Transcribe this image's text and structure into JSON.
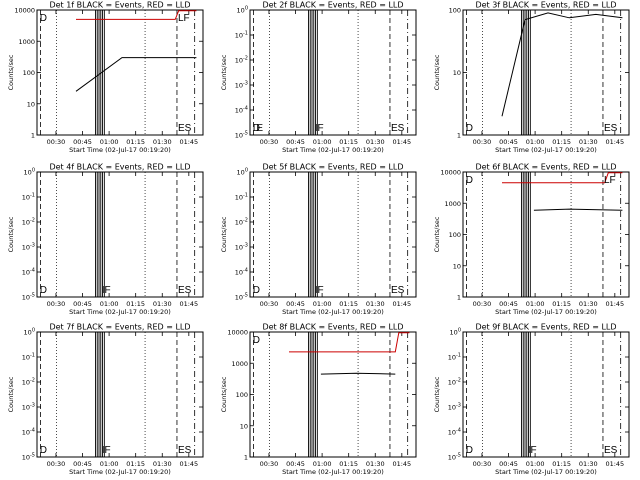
{
  "figure": {
    "xlabel": "Start Time (02-Jul-17 00:19:20)",
    "ylabel": "Counts/sec",
    "xlim": [
      "00:19:20",
      "01:53"
    ],
    "tick_sets": {
      "a": [
        "00:30",
        "00:45",
        "01:00",
        "01:15",
        "01:30",
        "01:45"
      ],
      "b": [
        "00:30",
        "00:45",
        "01:00",
        "01:15",
        "01:30",
        "01:45"
      ]
    },
    "ytick_sets": {
      "linear": [
        "1",
        "10",
        "100",
        "1000",
        "10000"
      ],
      "exp": [
        "10^0",
        "10^-1",
        "10^-2",
        "10^-3",
        "10^-4",
        "10^-5"
      ]
    },
    "colors": {
      "events": "#000000",
      "lld": "#cc0000",
      "axes": "#000000"
    }
  },
  "chart_data": [
    {
      "title": "Det 1f BLACK = Events, RED = LLD",
      "type": "line",
      "yscale": "log",
      "ylim": [
        1,
        10000
      ],
      "ytick_labels": [
        "1",
        "10",
        "100",
        "1000",
        "10000"
      ],
      "xtick_labels": [
        "00:30",
        "00:45",
        "01:00",
        "01:15",
        "01:30",
        "01:45"
      ],
      "series": [
        {
          "name": "Events",
          "color": "#000000",
          "x_min": [
            22,
            48,
            90
          ],
          "y": [
            25,
            300,
            300
          ]
        },
        {
          "name": "LLD",
          "color": "#cc0000",
          "x_min": [
            22,
            78,
            80,
            90
          ],
          "y": [
            5000,
            5000,
            9500,
            9500
          ]
        }
      ],
      "marks": [
        "D",
        "LF",
        "ES"
      ]
    },
    {
      "title": "Det 2f BLACK = Events, RED = LLD",
      "type": "line",
      "yscale": "log",
      "ylim": [
        1e-05,
        1
      ],
      "ytick_labels": [
        "10^0",
        "10^-1",
        "10^-2",
        "10^-3",
        "10^-4",
        "10^-5"
      ],
      "xtick_labels": [
        "00:30",
        "00:45",
        "01:00",
        "01:15",
        "01:30",
        "01:45"
      ],
      "series": [],
      "marks": [
        "D",
        "E",
        "IF",
        "ES"
      ]
    },
    {
      "title": "Det 3f BLACK = Events, RED = LLD",
      "type": "line",
      "yscale": "log",
      "ylim": [
        1,
        100
      ],
      "ytick_labels": [
        "1",
        "10",
        "100"
      ],
      "xtick_labels": [
        "00:30",
        "00:45",
        "01:00",
        "01:15",
        "01:30",
        "01:45"
      ],
      "series": [
        {
          "name": "Events",
          "color": "#000000",
          "x_min": [
            22,
            35,
            48,
            60,
            75,
            90
          ],
          "y": [
            2,
            70,
            90,
            75,
            85,
            75
          ]
        }
      ],
      "marks": [
        "D",
        "ES"
      ]
    },
    {
      "title": "Det 4f BLACK = Events, RED = LLD",
      "type": "line",
      "yscale": "log",
      "ylim": [
        1e-05,
        1
      ],
      "ytick_labels": [
        "10^0",
        "10^-1",
        "10^-2",
        "10^-3",
        "10^-4",
        "10^-5"
      ],
      "xtick_labels": [
        "00:30",
        "00:45",
        "01:00",
        "01:15",
        "01:30",
        "01:45"
      ],
      "series": [],
      "marks": [
        "D",
        "IF",
        "ES"
      ]
    },
    {
      "title": "Det 5f BLACK = Events, RED = LLD",
      "type": "line",
      "yscale": "log",
      "ylim": [
        1e-05,
        1
      ],
      "ytick_labels": [
        "10^0",
        "10^-1",
        "10^-2",
        "10^-3",
        "10^-4",
        "10^-5"
      ],
      "xtick_labels": [
        "00:30",
        "00:45",
        "01:00",
        "01:15",
        "01:30",
        "01:45"
      ],
      "series": [],
      "marks": [
        "D",
        "IF",
        "ES"
      ]
    },
    {
      "title": "Det 6f BLACK = Events, RED = LLD",
      "type": "line",
      "yscale": "log",
      "ylim": [
        1,
        10000
      ],
      "ytick_labels": [
        "1",
        "10",
        "100",
        "1000",
        "10000"
      ],
      "xtick_labels": [
        "00:30",
        "00:45",
        "01:00",
        "01:15",
        "01:30",
        "01:45"
      ],
      "series": [
        {
          "name": "Events",
          "color": "#000000",
          "x_min": [
            40,
            60,
            90
          ],
          "y": [
            600,
            650,
            600
          ]
        },
        {
          "name": "LLD",
          "color": "#cc0000",
          "x_min": [
            22,
            80,
            82,
            90
          ],
          "y": [
            4500,
            4500,
            9500,
            9500
          ]
        }
      ],
      "marks": [
        "D",
        "LF"
      ]
    },
    {
      "title": "Det 7f BLACK = Events, RED = LLD",
      "type": "line",
      "yscale": "log",
      "ylim": [
        1e-05,
        1
      ],
      "ytick_labels": [
        "10^0",
        "10^-1",
        "10^-2",
        "10^-3",
        "10^-4",
        "10^-5"
      ],
      "xtick_labels": [
        "00:30",
        "00:45",
        "01:00",
        "01:15",
        "01:30",
        "01:45"
      ],
      "series": [],
      "marks": [
        "D",
        "IF",
        "ES"
      ]
    },
    {
      "title": "Det 8f BLACK = Events, RED = LLD",
      "type": "line",
      "yscale": "log",
      "ylim": [
        1,
        10000
      ],
      "ytick_labels": [
        "1",
        "10",
        "100",
        "1000",
        "10000"
      ],
      "xtick_labels": [
        "00:30",
        "00:45",
        "01:00",
        "01:15",
        "01:30",
        "01:45"
      ],
      "series": [
        {
          "name": "Events",
          "color": "#000000",
          "x_min": [
            40,
            60,
            82
          ],
          "y": [
            450,
            480,
            450
          ]
        },
        {
          "name": "LLD",
          "color": "#cc0000",
          "x_min": [
            22,
            82,
            84,
            90
          ],
          "y": [
            2300,
            2300,
            9500,
            9500
          ]
        }
      ],
      "marks": [
        "D"
      ]
    },
    {
      "title": "Det 9f BLACK = Events, RED = LLD",
      "type": "line",
      "yscale": "log",
      "ylim": [
        1e-05,
        1
      ],
      "ytick_labels": [
        "10^0",
        "10^-1",
        "10^-2",
        "10^-3",
        "10^-4",
        "10^-5"
      ],
      "xtick_labels": [
        "00:30",
        "00:45",
        "01:00",
        "01:15",
        "01:30",
        "01:45"
      ],
      "series": [],
      "marks": [
        "D",
        "IF",
        "ES"
      ]
    }
  ]
}
